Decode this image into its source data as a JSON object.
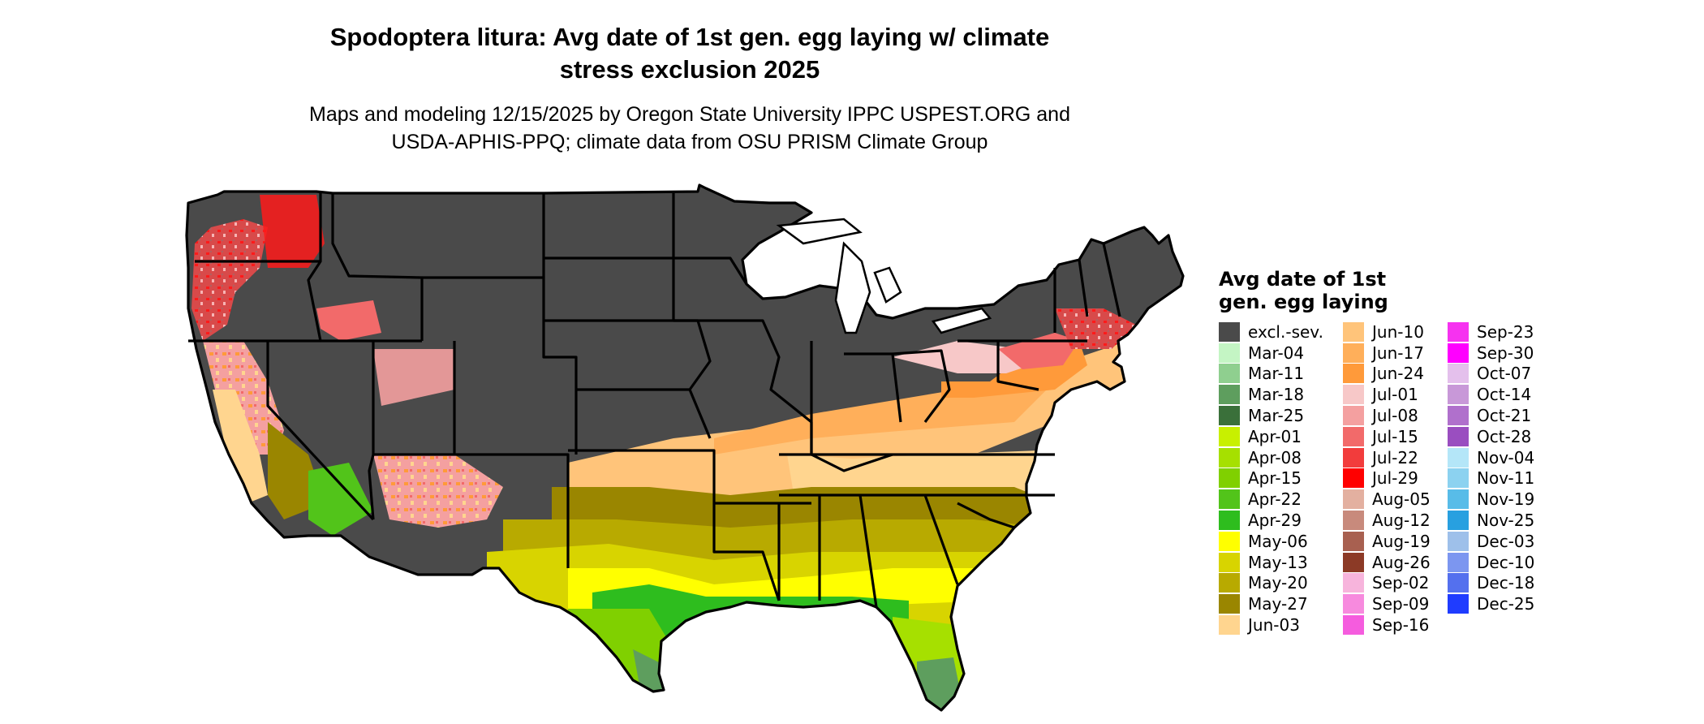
{
  "title_line1": "Spodoptera litura: Avg date of 1st gen. egg laying w/ climate",
  "title_line2": "stress exclusion 2025",
  "subtitle_line1": "Maps and modeling 12/15/2025 by Oregon State University IPPC USPEST.ORG and",
  "subtitle_line2": "USDA-APHIS-PPQ; climate data from OSU PRISM Climate Group",
  "legend": {
    "title_line1": "Avg date of 1st",
    "title_line2": "gen. egg laying",
    "columns": [
      [
        {
          "label": "excl.-sev.",
          "color": "#4a4a4a"
        },
        {
          "label": "Mar-04",
          "color": "#c4f5c4"
        },
        {
          "label": "Mar-11",
          "color": "#8fcf8f"
        },
        {
          "label": "Mar-18",
          "color": "#5e9e5e"
        },
        {
          "label": "Mar-25",
          "color": "#3a703a"
        },
        {
          "label": "Apr-01",
          "color": "#c8f000"
        },
        {
          "label": "Apr-08",
          "color": "#a6e000"
        },
        {
          "label": "Apr-15",
          "color": "#80d000"
        },
        {
          "label": "Apr-22",
          "color": "#52c41a"
        },
        {
          "label": "Apr-29",
          "color": "#2ebd1e"
        },
        {
          "label": "May-06",
          "color": "#ffff00"
        },
        {
          "label": "May-13",
          "color": "#d8d400"
        },
        {
          "label": "May-20",
          "color": "#b8aa00"
        },
        {
          "label": "May-27",
          "color": "#9a8600"
        },
        {
          "label": "Jun-03",
          "color": "#ffd58f"
        }
      ],
      [
        {
          "label": "Jun-10",
          "color": "#ffc47a"
        },
        {
          "label": "Jun-17",
          "color": "#ffaf5a"
        },
        {
          "label": "Jun-24",
          "color": "#ff9a3a"
        },
        {
          "label": "Jul-01",
          "color": "#f7c8c8"
        },
        {
          "label": "Jul-08",
          "color": "#f4a0a0"
        },
        {
          "label": "Jul-15",
          "color": "#f26a6a"
        },
        {
          "label": "Jul-22",
          "color": "#f23c3c"
        },
        {
          "label": "Jul-29",
          "color": "#ff0000"
        },
        {
          "label": "Aug-05",
          "color": "#e3b0a0"
        },
        {
          "label": "Aug-12",
          "color": "#c88a7c"
        },
        {
          "label": "Aug-19",
          "color": "#a86050"
        },
        {
          "label": "Aug-26",
          "color": "#8c3a26"
        },
        {
          "label": "Sep-02",
          "color": "#f7b4dc"
        },
        {
          "label": "Sep-09",
          "color": "#f78ade"
        },
        {
          "label": "Sep-16",
          "color": "#f55cde"
        }
      ],
      [
        {
          "label": "Sep-23",
          "color": "#f632f0"
        },
        {
          "label": "Sep-30",
          "color": "#ff00ff"
        },
        {
          "label": "Oct-07",
          "color": "#e4c0ec"
        },
        {
          "label": "Oct-14",
          "color": "#c898d8"
        },
        {
          "label": "Oct-21",
          "color": "#b070cc"
        },
        {
          "label": "Oct-28",
          "color": "#9a4ec0"
        },
        {
          "label": "Nov-04",
          "color": "#b4e6f8"
        },
        {
          "label": "Nov-11",
          "color": "#8cd2f0"
        },
        {
          "label": "Nov-19",
          "color": "#58bce8"
        },
        {
          "label": "Nov-25",
          "color": "#28a0e0"
        },
        {
          "label": "Dec-03",
          "color": "#9ec0ea"
        },
        {
          "label": "Dec-10",
          "color": "#7c96f0"
        },
        {
          "label": "Dec-18",
          "color": "#5470ee"
        },
        {
          "label": "Dec-25",
          "color": "#1f3cff"
        }
      ]
    ]
  }
}
